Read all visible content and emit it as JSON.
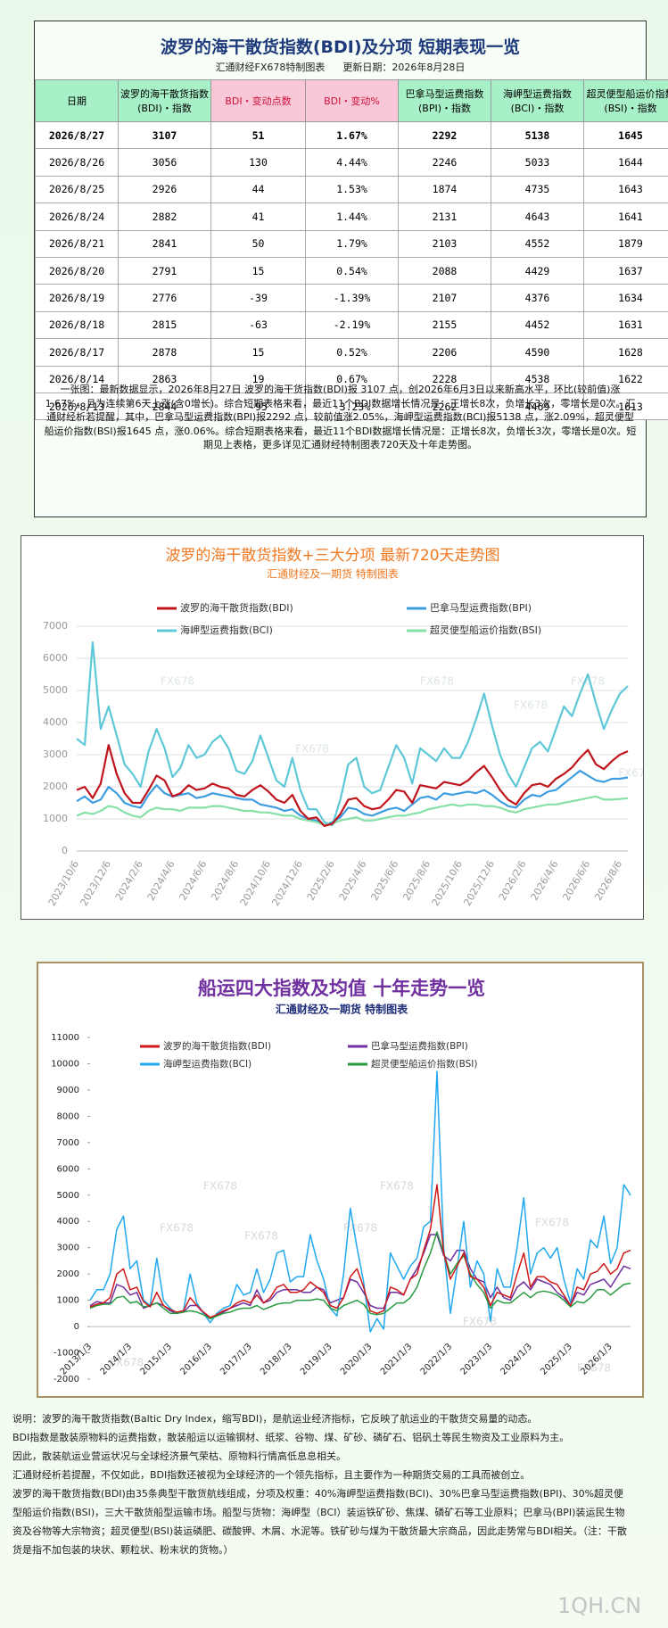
{
  "header": {
    "title": "波罗的海干散货指数(BDI)及分项  短期表现一览",
    "source": "汇通财经FX678特制图表",
    "update": "更新日期：2026年8月28日"
  },
  "table": {
    "columns": [
      "日期",
      "波罗的海干散货指数(BDI)・指数",
      "BDI・变动点数",
      "BDI・变动%",
      "巴拿马型运费指数(BPI)・指数",
      "海岬型运费指数(BCI)・指数",
      "超灵便型船运价指数(BSI)・指数"
    ],
    "rows": [
      [
        "2026/8/27",
        3107,
        51,
        "1.67%",
        2292,
        5138,
        1645
      ],
      [
        "2026/8/26",
        3056,
        130,
        "4.44%",
        2246,
        5033,
        1644
      ],
      [
        "2026/8/25",
        2926,
        44,
        "1.53%",
        1874,
        4735,
        1643
      ],
      [
        "2026/8/24",
        2882,
        41,
        "1.44%",
        2131,
        4643,
        1641
      ],
      [
        "2026/8/21",
        2841,
        50,
        "1.79%",
        2103,
        4552,
        1879
      ],
      [
        "2026/8/20",
        2791,
        15,
        "0.54%",
        2088,
        4429,
        1637
      ],
      [
        "2026/8/19",
        2776,
        -39,
        "-1.39%",
        2107,
        4376,
        1634
      ],
      [
        "2026/8/18",
        2815,
        -63,
        "-2.19%",
        2155,
        4452,
        1631
      ],
      [
        "2026/8/17",
        2878,
        15,
        "0.52%",
        2206,
        4590,
        1628
      ],
      [
        "2026/8/14",
        2863,
        19,
        "0.67%",
        2228,
        4538,
        1622
      ],
      [
        "2026/8/13",
        2844,
        -95,
        "-3.23%",
        2262,
        4469,
        1613
      ]
    ]
  },
  "summary": "一张图：最新数据显示，2026年8月27日 波罗的海干货指数(BDI)报 3107 点，创2026年6月3日以来新高水平，环比(较前值)涨1.67%，且为连续第6天上涨(含0增长)。综合短期表格来看，最近11个BDI数据增长情况是：正增长8次，负增长3次，零增长是0次。汇通财经析若提醒，其中，巴拿马型运费指数(BPI)报2292 点，较前值涨2.05%，海岬型运费指数(BCI)报5138 点，涨2.09%，超灵便型船运价指数(BSI)报1645 点，涨0.06%。综合短期表格来看，最近11个BDI数据增长情况是：正增长8次，负增长3次，零增长是0次。短期见上表格，更多详见汇通财经特制图表720天及十年走势图。",
  "chart_data": [
    {
      "type": "line",
      "title": "波罗的海干散货指数+三大分项  最新720天走势图",
      "subtitle": "汇通财经及一期货  特制图表",
      "watermark": "FX678",
      "grid": true,
      "legend": "top",
      "categories": [
        "2023/10/6",
        null,
        null,
        null,
        "2023/12/6",
        null,
        null,
        null,
        "2024/2/6",
        null,
        null,
        null,
        "2024/4/6",
        null,
        null,
        null,
        "2024/6/6",
        null,
        null,
        null,
        "2024/8/6",
        null,
        null,
        null,
        "2024/10/6",
        null,
        null,
        null,
        "2024/12/6",
        null,
        null,
        null,
        "2025/2/6",
        null,
        null,
        null,
        "2025/4/6",
        null,
        null,
        null,
        "2025/6/6",
        null,
        null,
        null,
        "2025/8/6",
        null,
        null,
        null,
        "2025/10/6",
        null,
        null,
        null,
        "2025/12/6",
        null,
        null,
        null,
        "2026/2/6",
        null,
        null,
        null,
        "2026/4/6",
        null,
        null,
        null,
        "2026/6/6",
        null,
        null,
        null,
        "2026/8/6",
        null
      ],
      "ylim": [
        0,
        7000
      ],
      "yticks": [
        0,
        1000,
        2000,
        3000,
        4000,
        5000,
        6000,
        7000
      ],
      "series": [
        {
          "name": "波罗的海干散货指数(BDI)",
          "color": "#c0141c",
          "values": [
            1900,
            2000,
            1650,
            2100,
            3300,
            2400,
            1800,
            1500,
            1500,
            1900,
            2350,
            2200,
            1700,
            1800,
            2050,
            1900,
            1950,
            2100,
            2000,
            1950,
            1750,
            1700,
            1900,
            2050,
            1850,
            1600,
            1500,
            1750,
            1250,
            1000,
            1050,
            780,
            850,
            1150,
            1600,
            1650,
            1400,
            1300,
            1350,
            1600,
            1900,
            1850,
            1500,
            2050,
            2000,
            1950,
            2150,
            2100,
            2050,
            2200,
            2450,
            2650,
            2300,
            1900,
            1600,
            1450,
            1800,
            2050,
            2100,
            2000,
            2250,
            2400,
            2600,
            2900,
            3150,
            2700,
            2550,
            2800,
            3000,
            3107
          ]
        },
        {
          "name": "巴拿马型运费指数(BPI)",
          "color": "#3d9de0",
          "values": [
            1550,
            1700,
            1500,
            1600,
            2000,
            1800,
            1500,
            1400,
            1350,
            1750,
            2050,
            1800,
            1700,
            1750,
            1800,
            1650,
            1700,
            1800,
            1750,
            1700,
            1650,
            1600,
            1600,
            1450,
            1400,
            1350,
            1250,
            1300,
            1100,
            1000,
            950,
            800,
            900,
            1050,
            1350,
            1300,
            1150,
            1100,
            1200,
            1300,
            1350,
            1250,
            1450,
            1650,
            1700,
            1600,
            1800,
            1750,
            1800,
            1850,
            1800,
            1900,
            1750,
            1550,
            1400,
            1350,
            1600,
            1750,
            1700,
            1850,
            1900,
            2100,
            2300,
            2500,
            2350,
            2200,
            2150,
            2250,
            2250,
            2292
          ]
        },
        {
          "name": "海岬型运费指数(BCI)",
          "color": "#5ec8d8",
          "values": [
            3500,
            3300,
            6500,
            3800,
            4500,
            3600,
            2700,
            2400,
            2000,
            3100,
            3800,
            3200,
            2300,
            2600,
            3300,
            2900,
            3000,
            3400,
            3600,
            3200,
            2500,
            2400,
            2800,
            3600,
            2900,
            2200,
            2000,
            2900,
            1900,
            1300,
            1300,
            900,
            800,
            1600,
            2700,
            2900,
            2000,
            1800,
            1900,
            2600,
            3300,
            2900,
            2100,
            3200,
            3000,
            2800,
            3200,
            2900,
            2900,
            3400,
            4100,
            4900,
            3900,
            3000,
            2400,
            2000,
            2600,
            3200,
            3400,
            3100,
            3800,
            4500,
            4200,
            4900,
            5500,
            4600,
            3800,
            4400,
            4900,
            5138
          ]
        },
        {
          "name": "超灵便型船运价指数(BSI)",
          "color": "#86e0a8",
          "values": [
            1100,
            1200,
            1150,
            1250,
            1400,
            1350,
            1200,
            1100,
            1050,
            1250,
            1350,
            1300,
            1300,
            1250,
            1350,
            1350,
            1350,
            1400,
            1400,
            1350,
            1300,
            1250,
            1250,
            1200,
            1200,
            1150,
            1100,
            1100,
            1000,
            950,
            900,
            800,
            850,
            950,
            1000,
            1050,
            950,
            950,
            1000,
            1050,
            1100,
            1100,
            1150,
            1200,
            1300,
            1350,
            1400,
            1450,
            1400,
            1450,
            1450,
            1400,
            1400,
            1350,
            1250,
            1200,
            1300,
            1350,
            1400,
            1450,
            1450,
            1500,
            1550,
            1600,
            1650,
            1700,
            1600,
            1600,
            1620,
            1645
          ]
        }
      ]
    },
    {
      "type": "line",
      "title": "船运四大指数及均值 十年走势一览",
      "subtitle": "汇通财经及一期货 特制图表",
      "watermark": "FX678",
      "grid": false,
      "legend": "top",
      "categories": [
        "2013/1/3",
        null,
        null,
        null,
        null,
        null,
        "2014/1/3",
        null,
        null,
        null,
        null,
        null,
        "2015/1/3",
        null,
        null,
        null,
        null,
        null,
        "2016/1/3",
        null,
        null,
        null,
        null,
        null,
        "2017/1/3",
        null,
        null,
        null,
        null,
        null,
        "2018/1/3",
        null,
        null,
        null,
        null,
        null,
        "2019/1/3",
        null,
        null,
        null,
        null,
        null,
        "2020/1/3",
        null,
        null,
        null,
        null,
        null,
        "2021/1/3",
        null,
        null,
        null,
        null,
        null,
        "2022/1/3",
        null,
        null,
        null,
        null,
        null,
        "2023/1/3",
        null,
        null,
        null,
        null,
        null,
        "2024/1/3",
        null,
        null,
        null,
        null,
        null,
        "2025/1/3",
        null,
        null,
        null,
        null,
        null,
        "2026/1/3",
        null,
        null,
        null
      ],
      "ylim": [
        -2000,
        11000
      ],
      "yticks": [
        -2000,
        -1000,
        0,
        1000,
        2000,
        3000,
        4000,
        5000,
        6000,
        7000,
        8000,
        9000,
        10000,
        11000
      ],
      "series": [
        {
          "name": "波罗的海干散货指数(BDI)",
          "color": "#d01818",
          "values": [
            750,
            850,
            900,
            1100,
            2000,
            2200,
            1400,
            1500,
            950,
            750,
            1300,
            800,
            650,
            550,
            600,
            1100,
            800,
            550,
            350,
            450,
            600,
            700,
            900,
            1000,
            900,
            1200,
            900,
            1100,
            1500,
            1600,
            1300,
            1300,
            1400,
            1700,
            1500,
            1300,
            800,
            700,
            1100,
            1900,
            2200,
            1500,
            600,
            500,
            600,
            1500,
            1400,
            1200,
            1800,
            2000,
            2900,
            3700,
            5400,
            2800,
            1800,
            2300,
            2800,
            1900,
            1800,
            1500,
            800,
            1300,
            1200,
            1100,
            2000,
            2800,
            1500,
            1900,
            1900,
            1700,
            1600,
            1200,
            800,
            1500,
            1400,
            2000,
            2100,
            2400,
            2000,
            2200,
            2800,
            2900
          ]
        },
        {
          "name": "巴拿马型运费指数(BPI)",
          "color": "#7030a0",
          "values": [
            800,
            950,
            900,
            900,
            1600,
            1500,
            1200,
            1300,
            700,
            800,
            900,
            800,
            600,
            500,
            550,
            800,
            800,
            500,
            300,
            450,
            550,
            700,
            800,
            900,
            800,
            1400,
            900,
            1000,
            1300,
            1400,
            1400,
            1400,
            1300,
            1300,
            1500,
            1400,
            900,
            1000,
            1100,
            1800,
            1700,
            1300,
            800,
            700,
            700,
            1300,
            1300,
            1200,
            1800,
            2200,
            2800,
            3500,
            3500,
            2700,
            2500,
            2900,
            2900,
            2200,
            1800,
            1700,
            1100,
            1500,
            1100,
            1000,
            1500,
            1700,
            1400,
            1800,
            1700,
            1600,
            1300,
            1100,
            800,
            1300,
            1200,
            1600,
            1700,
            1800,
            1500,
            1900,
            2300,
            2200
          ]
        },
        {
          "name": "海岬型运费指数(BCI)",
          "color": "#20a8f0",
          "values": [
            1000,
            1400,
            1400,
            2000,
            3700,
            4200,
            2200,
            2500,
            1000,
            800,
            2600,
            1000,
            700,
            500,
            600,
            2000,
            900,
            500,
            150,
            500,
            700,
            800,
            1600,
            1200,
            1300,
            2200,
            1300,
            1800,
            2800,
            2900,
            1700,
            1900,
            1900,
            3500,
            2500,
            1800,
            700,
            400,
            2000,
            4500,
            3000,
            1700,
            -200,
            300,
            -100,
            2800,
            2300,
            1800,
            2300,
            2600,
            3800,
            4000,
            9700,
            3000,
            500,
            2200,
            4000,
            1500,
            2500,
            2000,
            200,
            2200,
            1500,
            1500,
            3000,
            4900,
            2000,
            2800,
            3000,
            2600,
            3000,
            1800,
            900,
            2200,
            1800,
            3300,
            3000,
            4200,
            2400,
            3000,
            5400,
            5000
          ]
        },
        {
          "name": "超灵便型船运价指数(BSI)",
          "color": "#2a9a40",
          "values": [
            700,
            800,
            850,
            850,
            1100,
            1150,
            900,
            950,
            750,
            800,
            900,
            700,
            500,
            500,
            550,
            600,
            550,
            450,
            300,
            400,
            500,
            550,
            650,
            700,
            700,
            800,
            650,
            750,
            850,
            900,
            900,
            1000,
            1000,
            1000,
            1050,
            1000,
            700,
            600,
            800,
            900,
            1000,
            850,
            500,
            450,
            500,
            700,
            900,
            900,
            1100,
            1500,
            2200,
            2800,
            3600,
            2800,
            2000,
            2400,
            2700,
            2000,
            1600,
            1300,
            700,
            1000,
            900,
            900,
            1100,
            1300,
            1100,
            1300,
            1350,
            1300,
            1200,
            1000,
            750,
            950,
            900,
            1100,
            1400,
            1400,
            1200,
            1400,
            1600,
            1650
          ]
        }
      ]
    }
  ],
  "notes": [
    "说明：波罗的海干散货指数(Baltic Dry Index，缩写BDI)，是航运业经济指标，它反映了航运业的干散货交易量的动态。",
    "BDI指数是散装原物料的运费指数，散装船运以运输钢材、纸浆、谷物、煤、矿砂、磷矿石、铝矾土等民生物资及工业原料为主。",
    "因此，散装航运业营运状况与全球经济景气荣枯、原物料行情高低息息相关。",
    "汇通财经析若提醒，不仅如此，BDI指数还被视为全球经济的一个领先指标，且主要作为一种期货交易的工具而被创立。",
    "波罗的海干散货指数(BDI)由35条典型干散货航线组成，分项及权重：40%海岬型运费指数(BCI)、30%巴拿马型运费指数(BPI)、30%超灵便型船运价指数(BSI)，三大干散货船型运输市场。船型与货物：海岬型（BCI）装运铁矿砂、焦煤、磷矿石等工业原料；巴拿马(BPI)装运民生物资及谷物等大宗物资；超灵便型(BSI)装运磷肥、碳酸钾、木屑、水泥等。铁矿砂与煤为干散货最大宗商品，因此走势常与BDI相关。（注：干散货是指不加包装的块状、颗粒状、粉末状的货物。）"
  ],
  "watermark": "1QH.CN"
}
